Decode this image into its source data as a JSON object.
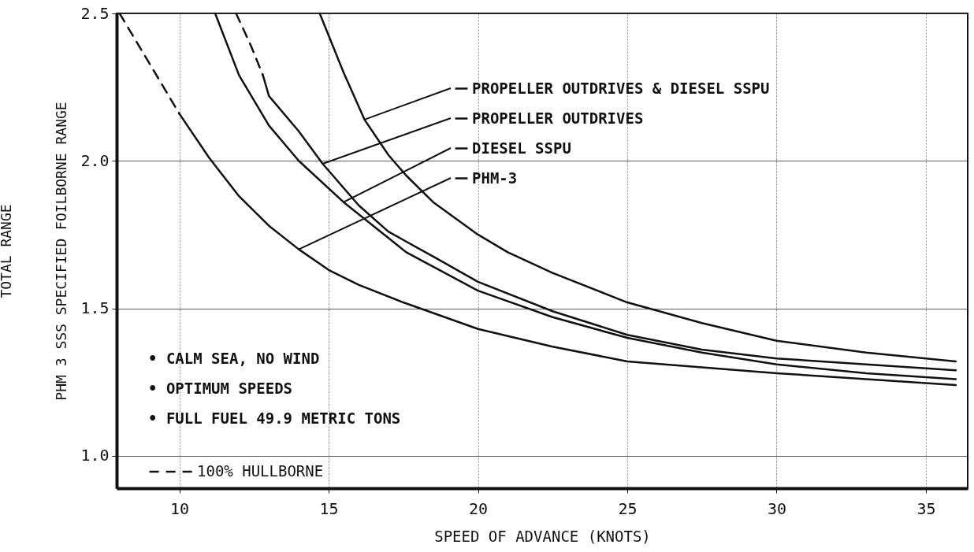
{
  "chart_data": {
    "type": "line",
    "xlabel": "SPEED OF ADVANCE (KNOTS)",
    "ylabel": "TOTAL RANGE\nPHM 3 SSS SPECIFIED FOILBORNE RANGE",
    "xlim": [
      7.9,
      36.4
    ],
    "xticks": [
      10,
      15,
      20,
      25,
      30,
      35
    ],
    "ylim": [
      0.89,
      2.5
    ],
    "yticks": [
      {
        "value": 1,
        "label": "1.0"
      },
      1.5,
      {
        "value": 2,
        "label": "2.0"
      },
      2.5
    ],
    "grid": true,
    "legend": "bottom left",
    "series": [
      {
        "name": "PROPELLER OUTDRIVES & DIESEL SSPU",
        "color": "#111111",
        "line_style": "solid",
        "x": [
          14.7,
          15.5,
          16.2,
          17,
          17.6,
          18.5,
          20,
          21,
          22.5,
          25,
          27.5,
          30,
          33,
          36
        ],
        "values": [
          2.5,
          2.3,
          2.14,
          2.02,
          1.95,
          1.86,
          1.75,
          1.69,
          1.62,
          1.52,
          1.45,
          1.39,
          1.35,
          1.32
        ]
      },
      {
        "name": "PROPELLER OUTDRIVES",
        "color": "#111111",
        "line_style": "solid",
        "x": [
          12.8,
          13,
          14,
          14.8,
          16,
          17,
          18.6,
          20,
          22.5,
          25,
          27.5,
          30,
          33,
          36
        ],
        "values": [
          2.29,
          2.22,
          2.1,
          1.99,
          1.85,
          1.76,
          1.67,
          1.59,
          1.49,
          1.41,
          1.36,
          1.33,
          1.31,
          1.29
        ]
      },
      {
        "name": "DIESEL SSPU",
        "color": "#111111",
        "line_style": "solid",
        "x": [
          11.2,
          12,
          13,
          14,
          15.5,
          17.6,
          20,
          22.5,
          25,
          27.5,
          30,
          33,
          36
        ],
        "values": [
          2.5,
          2.29,
          2.12,
          2.0,
          1.86,
          1.69,
          1.56,
          1.47,
          1.4,
          1.35,
          1.31,
          1.28,
          1.26
        ]
      },
      {
        "name": "PHM-3",
        "color": "#111111",
        "line_style": "solid",
        "x": [
          10,
          11,
          12,
          13,
          14,
          15,
          16,
          17.5,
          20,
          22.5,
          25,
          27.5,
          30,
          33,
          36
        ],
        "values": [
          2.16,
          2.01,
          1.88,
          1.78,
          1.7,
          1.63,
          1.58,
          1.52,
          1.43,
          1.37,
          1.32,
          1.3,
          1.28,
          1.26,
          1.24
        ]
      },
      {
        "name": "100% HULLBORNE",
        "color": "#111111",
        "line_style": "dashed",
        "x": [
          8,
          9,
          10,
          11,
          11.9,
          12.4,
          12.8
        ],
        "values": [
          2.5,
          2.33,
          2.16,
          null,
          2.5,
          2.39,
          2.29
        ]
      }
    ],
    "annotations": [
      "• CALM SEA, NO WIND",
      "• OPTIMUM SPEEDS",
      "• FULL FUEL 49.9 METRIC TONS"
    ]
  }
}
